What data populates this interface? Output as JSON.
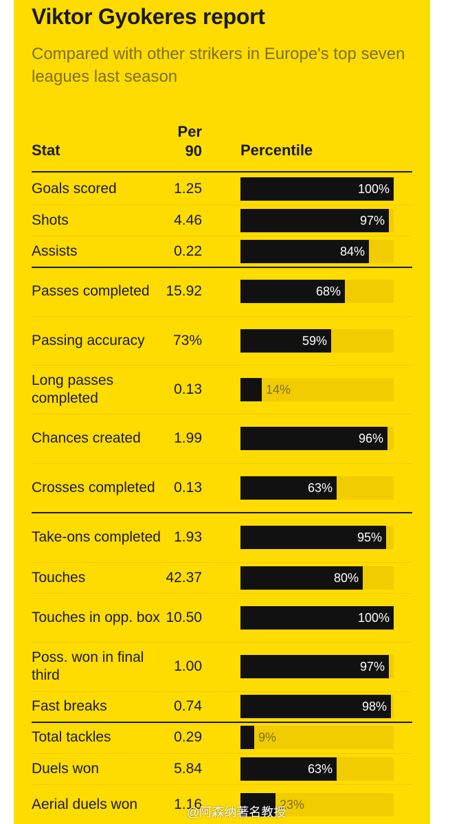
{
  "chart_data": {
    "type": "bar",
    "title": "Viktor Gyokeres report",
    "subtitle": "Compared with other strikers in Europe's top seven leagues last season",
    "columns": {
      "stat": "Stat",
      "per90_line1": "Per",
      "per90_line2": "90",
      "percentile": "Percentile"
    },
    "xlim": [
      0,
      100
    ],
    "groups_end_after": [
      2,
      7,
      12
    ],
    "rows": [
      {
        "stat": "Goals scored",
        "per90": "1.25",
        "percentile": 100,
        "percentile_label": "100%"
      },
      {
        "stat": "Shots",
        "per90": "4.46",
        "percentile": 97,
        "percentile_label": "97%"
      },
      {
        "stat": "Assists",
        "per90": "0.22",
        "percentile": 84,
        "percentile_label": "84%"
      },
      {
        "stat": "Passes completed",
        "per90": "15.92",
        "percentile": 68,
        "percentile_label": "68%"
      },
      {
        "stat": "Passing accuracy",
        "per90": "73%",
        "percentile": 59,
        "percentile_label": "59%"
      },
      {
        "stat": "Long passes completed",
        "per90": "0.13",
        "percentile": 14,
        "percentile_label": "14%"
      },
      {
        "stat": "Chances created",
        "per90": "1.99",
        "percentile": 96,
        "percentile_label": "96%"
      },
      {
        "stat": "Crosses completed",
        "per90": "0.13",
        "percentile": 63,
        "percentile_label": "63%"
      },
      {
        "stat": "Take-ons completed",
        "per90": "1.93",
        "percentile": 95,
        "percentile_label": "95%"
      },
      {
        "stat": "Touches",
        "per90": "42.37",
        "percentile": 80,
        "percentile_label": "80%"
      },
      {
        "stat": "Touches in opp. box",
        "per90": "10.50",
        "percentile": 100,
        "percentile_label": "100%"
      },
      {
        "stat": "Poss. won in final third",
        "per90": "1.00",
        "percentile": 97,
        "percentile_label": "97%"
      },
      {
        "stat": "Fast breaks",
        "per90": "0.74",
        "percentile": 98,
        "percentile_label": "98%"
      },
      {
        "stat": "Total tackles",
        "per90": "0.29",
        "percentile": 9,
        "percentile_label": "9%"
      },
      {
        "stat": "Duels won",
        "per90": "5.84",
        "percentile": 63,
        "percentile_label": "63%"
      },
      {
        "stat": "Aerial duels won",
        "per90": "1.16",
        "percentile": 23,
        "percentile_label": "23%"
      }
    ],
    "colors": {
      "background": "#ffdc00",
      "bar": "#111111",
      "track": "#f0cc00",
      "text": "#1a1a1a",
      "muted": "#7d6f12"
    }
  },
  "watermark": "@阿森纳著名教授"
}
